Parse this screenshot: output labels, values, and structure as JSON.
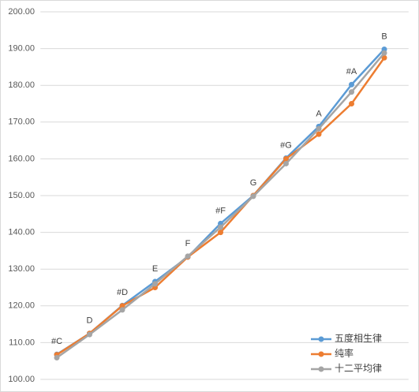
{
  "chart_data": {
    "type": "line",
    "categories": [
      "#C",
      "D",
      "#D",
      "E",
      "F",
      "#F",
      "G",
      "#G",
      "A",
      "#A",
      "B"
    ],
    "series": [
      {
        "name": "五度相生律",
        "color": "#5b9bd5",
        "values": [
          106.8,
          112.5,
          120.1,
          126.6,
          133.3,
          142.4,
          150,
          160.2,
          168.8,
          180.2,
          189.8
        ]
      },
      {
        "name": "纯率",
        "color": "#ed7d31",
        "values": [
          106.7,
          112.5,
          120,
          125,
          133.3,
          140,
          150,
          160,
          166.7,
          175,
          187.5
        ]
      },
      {
        "name": "十二平均律",
        "color": "#a5a5a5",
        "values": [
          105.9,
          112.2,
          118.9,
          126,
          133.5,
          141.4,
          149.8,
          158.7,
          168.2,
          178.2,
          188.8
        ]
      }
    ],
    "ylim": [
      100,
      200
    ],
    "yticks": [
      {
        "value": 100,
        "label": "100.00"
      },
      {
        "value": 110,
        "label": "110.00"
      },
      {
        "value": 120,
        "label": "120.00"
      },
      {
        "value": 130,
        "label": "130.00"
      },
      {
        "value": 140,
        "label": "140.00"
      },
      {
        "value": 150,
        "label": "150.00"
      },
      {
        "value": 160,
        "label": "160.00"
      },
      {
        "value": 170,
        "label": "170.00"
      },
      {
        "value": 180,
        "label": "180.00"
      },
      {
        "value": 190,
        "label": "190.00"
      },
      {
        "value": 200,
        "label": "200.00"
      }
    ],
    "grid": true,
    "legend": "bottom-right"
  }
}
